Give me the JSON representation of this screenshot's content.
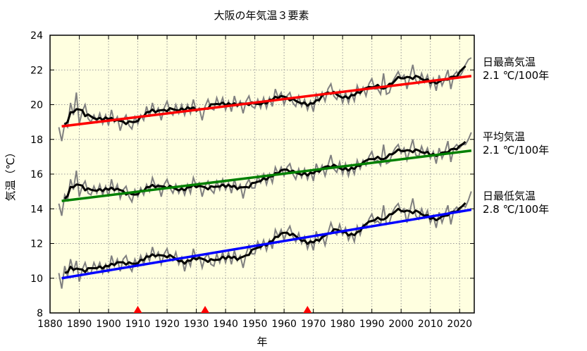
{
  "chart_data": {
    "type": "line",
    "title": "大阪の年気温３要素",
    "xlabel": "年",
    "ylabel": "気温（℃）",
    "xlim": [
      1880,
      2025
    ],
    "ylim": [
      8,
      24
    ],
    "grid": true,
    "background_color": "#ffffe0",
    "xticks": [
      1880,
      1890,
      1900,
      1910,
      1920,
      1930,
      1940,
      1950,
      1960,
      1970,
      1980,
      1990,
      2000,
      2010,
      2020
    ],
    "xtick_labels": [
      "1880",
      "1890",
      "1900",
      "1910",
      "1920",
      "1930",
      "1940",
      "1950",
      "1960",
      "1970",
      "1980",
      "1990",
      "2000",
      "2010",
      "2020"
    ],
    "yticks": [
      8,
      10,
      12,
      14,
      16,
      18,
      20,
      22,
      24
    ],
    "ytick_labels": [
      "8",
      "10",
      "12",
      "14",
      "16",
      "18",
      "20",
      "22",
      "24"
    ],
    "x_start": 1883,
    "annual_color": "#808080",
    "running_mean_color": "#000000",
    "running_mean_window": 5,
    "series": [
      {
        "name": "日最高気温",
        "rate_label": "2.1 ℃/100年",
        "trend_color": "#ff0000",
        "trend": {
          "x": [
            1884,
            2024
          ],
          "y": [
            18.75,
            21.65
          ]
        },
        "values": [
          18.7,
          17.9,
          18.9,
          18.7,
          20.1,
          19.4,
          20.7,
          18.9,
          19.6,
          20.0,
          19.2,
          19.0,
          19.4,
          19.0,
          19.5,
          18.9,
          19.4,
          18.8,
          19.7,
          19.0,
          19.3,
          18.5,
          19.1,
          19.4,
          18.8,
          18.6,
          19.3,
          18.9,
          19.4,
          19.1,
          19.9,
          19.3,
          20.1,
          19.5,
          19.8,
          19.1,
          19.8,
          20.2,
          19.6,
          19.4,
          20.0,
          19.5,
          20.0,
          19.4,
          20.0,
          19.5,
          20.3,
          19.6,
          19.8,
          19.1,
          19.9,
          20.3,
          19.8,
          19.7,
          20.4,
          19.9,
          20.4,
          19.7,
          20.2,
          19.6,
          20.5,
          19.9,
          20.2,
          19.5,
          20.2,
          20.5,
          19.9,
          19.8,
          20.3,
          19.8,
          20.4,
          19.8,
          20.4,
          19.9,
          20.9,
          20.4,
          20.7,
          20.0,
          20.5,
          20.7,
          20.1,
          19.9,
          20.5,
          19.9,
          20.3,
          19.7,
          20.2,
          19.6,
          20.6,
          20.2,
          20.7,
          20.2,
          20.9,
          21.2,
          20.5,
          20.3,
          20.8,
          20.1,
          20.7,
          20.1,
          20.7,
          20.2,
          21.1,
          20.6,
          21.0,
          20.5,
          21.2,
          21.5,
          20.9,
          20.9,
          20.6,
          21.8,
          20.6,
          20.7,
          21.3,
          21.6,
          21.9,
          21.5,
          21.7,
          20.9,
          21.6,
          22.3,
          21.4,
          21.2,
          21.8,
          21.3,
          21.7,
          21.0,
          21.5,
          20.8,
          21.7,
          21.1,
          21.5,
          22.0,
          20.9,
          21.7,
          21.9,
          21.6,
          21.9,
          22.3,
          22.6,
          22.7
        ]
      },
      {
        "name": "平均気温",
        "rate_label": "2.1 ℃/100年",
        "trend_color": "#008000",
        "trend": {
          "x": [
            1884,
            2024
          ],
          "y": [
            14.45,
            17.35
          ]
        },
        "values": [
          14.3,
          13.6,
          14.8,
          14.5,
          15.7,
          15.1,
          16.2,
          14.7,
          15.3,
          15.6,
          14.9,
          14.8,
          15.3,
          14.9,
          15.4,
          14.8,
          15.3,
          14.7,
          15.7,
          15.0,
          15.4,
          14.6,
          15.1,
          15.3,
          14.7,
          14.4,
          15.1,
          14.7,
          15.2,
          14.8,
          15.4,
          15.0,
          15.8,
          15.3,
          15.4,
          14.7,
          15.4,
          15.7,
          15.2,
          14.9,
          15.4,
          14.9,
          15.3,
          14.8,
          15.4,
          14.9,
          15.8,
          15.3,
          15.5,
          14.7,
          15.3,
          15.6,
          15.1,
          14.9,
          15.6,
          15.1,
          15.7,
          15.1,
          15.5,
          14.9,
          15.7,
          15.1,
          15.4,
          14.6,
          15.4,
          15.7,
          15.2,
          15.2,
          15.9,
          15.5,
          16.0,
          15.4,
          16.0,
          15.5,
          16.4,
          16.0,
          16.4,
          15.9,
          16.4,
          16.6,
          16.0,
          15.7,
          16.3,
          15.8,
          16.3,
          15.7,
          16.2,
          15.6,
          16.6,
          16.1,
          16.5,
          15.9,
          16.5,
          17.1,
          16.3,
          16.1,
          16.7,
          16.0,
          16.6,
          15.9,
          16.5,
          16.0,
          16.8,
          16.3,
          16.8,
          16.5,
          17.0,
          17.3,
          16.7,
          16.8,
          16.5,
          17.7,
          16.6,
          16.7,
          17.2,
          17.5,
          17.7,
          17.2,
          17.5,
          16.8,
          17.4,
          18.0,
          17.1,
          17.0,
          17.6,
          17.1,
          17.5,
          16.9,
          17.3,
          16.6,
          17.5,
          16.9,
          17.3,
          17.9,
          16.7,
          17.5,
          17.7,
          17.5,
          17.7,
          17.7,
          18.0,
          18.4
        ]
      },
      {
        "name": "日最低気温",
        "rate_label": "2.8 ℃/100年",
        "trend_color": "#0000ff",
        "trend": {
          "x": [
            1884,
            2024
          ],
          "y": [
            10.0,
            13.95
          ]
        },
        "values": [
          10.3,
          9.4,
          10.7,
          10.1,
          11.1,
          10.4,
          11.0,
          9.8,
          10.5,
          10.9,
          10.3,
          10.3,
          10.9,
          10.5,
          10.9,
          10.3,
          10.8,
          10.3,
          11.3,
          10.7,
          11.1,
          10.4,
          11.1,
          11.3,
          10.7,
          10.4,
          11.1,
          10.7,
          11.3,
          10.8,
          11.4,
          11.0,
          11.8,
          11.2,
          11.5,
          10.8,
          11.4,
          11.7,
          11.1,
          11.0,
          11.5,
          10.8,
          11.2,
          10.4,
          11.1,
          10.7,
          11.7,
          11.1,
          11.3,
          10.6,
          11.2,
          11.4,
          10.8,
          10.7,
          11.4,
          10.9,
          11.5,
          10.9,
          11.5,
          10.8,
          11.6,
          11.0,
          11.3,
          10.6,
          11.4,
          11.9,
          11.4,
          11.4,
          12.1,
          11.7,
          12.2,
          11.6,
          12.2,
          11.7,
          12.8,
          12.4,
          12.8,
          12.2,
          12.7,
          13.0,
          12.4,
          12.1,
          12.6,
          12.0,
          12.4,
          11.7,
          12.2,
          11.6,
          12.7,
          12.1,
          12.5,
          11.9,
          12.6,
          13.2,
          12.7,
          12.5,
          13.1,
          12.5,
          12.9,
          12.2,
          12.6,
          12.1,
          13.0,
          12.5,
          13.1,
          12.9,
          13.4,
          13.7,
          13.2,
          13.3,
          13.1,
          14.2,
          13.1,
          13.2,
          13.8,
          14.1,
          14.3,
          13.8,
          14.0,
          13.2,
          13.9,
          14.6,
          13.6,
          13.4,
          14.0,
          13.5,
          13.9,
          13.2,
          13.6,
          12.9,
          13.8,
          13.2,
          13.7,
          14.2,
          13.1,
          13.9,
          14.1,
          13.9,
          14.2,
          14.1,
          14.5,
          15.0
        ]
      }
    ],
    "markers": {
      "shape": "triangle",
      "color": "#ff0000",
      "x": [
        1910,
        1933,
        1968
      ]
    }
  }
}
